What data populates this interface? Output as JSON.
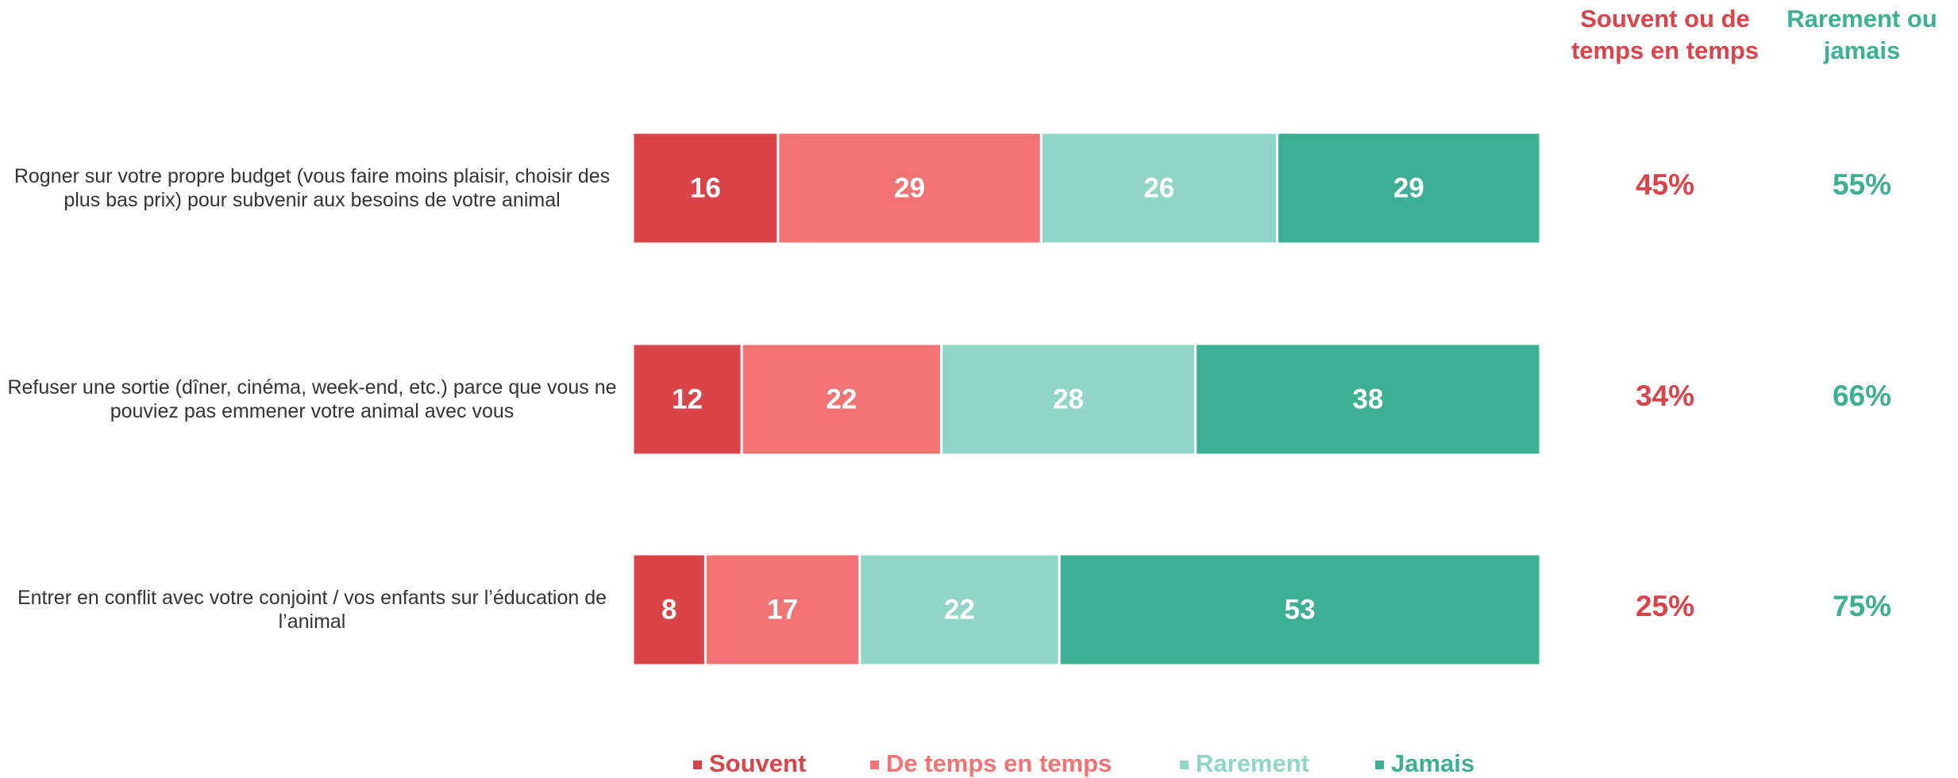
{
  "chart_data": {
    "type": "stacked-bar-horizontal",
    "categories": [
      "Rogner sur votre propre budget (vous faire moins plaisir, choisir des plus bas prix) pour subvenir aux besoins de votre animal",
      "Refuser une sortie (dîner, cinéma, week-end, etc.) parce que vous ne pouviez pas emmener votre animal avec vous",
      "Entrer en conflit avec votre conjoint / vos enfants sur l’éducation de l’animal"
    ],
    "series": [
      {
        "name": "Souvent",
        "color": "#d9444b",
        "values": [
          16,
          12,
          8
        ]
      },
      {
        "name": "De temps en temps",
        "color": "#f27374",
        "values": [
          29,
          22,
          17
        ]
      },
      {
        "name": "Rarement",
        "color": "#8fd6c8",
        "values": [
          26,
          28,
          22
        ]
      },
      {
        "name": "Jamais",
        "color": "#3daf94",
        "values": [
          29,
          38,
          53
        ]
      }
    ],
    "xlim": [
      0,
      100
    ],
    "summary_columns": [
      {
        "name": "Souvent ou de temps en temps",
        "color": "#d9444b",
        "values": [
          45,
          34,
          25
        ],
        "value_labels": [
          "45%",
          "34%",
          "25%"
        ]
      },
      {
        "name": "Rarement ou jamais",
        "color": "#3daf94",
        "values": [
          55,
          66,
          75
        ],
        "value_labels": [
          "55%",
          "66%",
          "75%"
        ]
      }
    ],
    "legend": "bottom"
  }
}
